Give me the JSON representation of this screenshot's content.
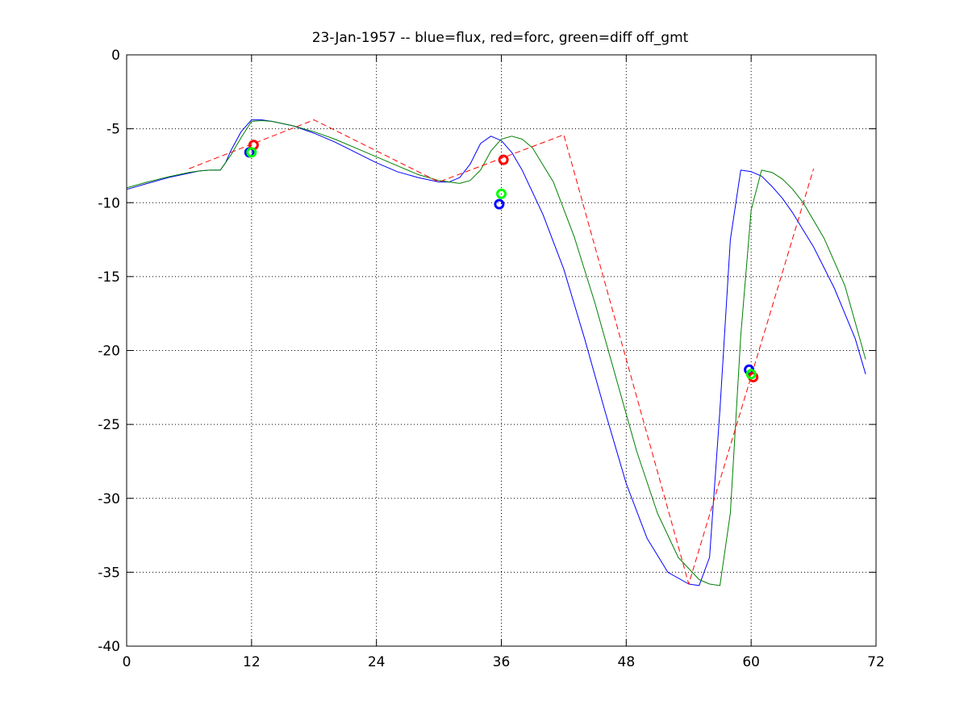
{
  "chart_data": {
    "type": "line",
    "title": "23-Jan-1957 -- blue=flux, red=forc, green=diff off_gmt",
    "xlabel": "",
    "ylabel": "",
    "xlim": [
      0,
      72
    ],
    "ylim": [
      -40,
      0
    ],
    "xticks": [
      0,
      12,
      24,
      36,
      48,
      60,
      72
    ],
    "xtick_labels": [
      "0",
      "12",
      "24",
      "36",
      "48",
      "60",
      "72"
    ],
    "yticks": [
      0,
      -5,
      -10,
      -15,
      -20,
      -25,
      -30,
      -35,
      -40
    ],
    "ytick_labels": [
      "0",
      "-5",
      "-10",
      "-15",
      "-20",
      "-25",
      "-30",
      "-35",
      "-40"
    ],
    "grid": true,
    "series": [
      {
        "color": "#0000ff",
        "style": "solid",
        "x": [
          0,
          2,
          4,
          6,
          7,
          8,
          9,
          9.5,
          10,
          11,
          12,
          13,
          14,
          16,
          18,
          20,
          22,
          24,
          26,
          28,
          30,
          31,
          32,
          33,
          34,
          35,
          36,
          37,
          38,
          40,
          42,
          44,
          46,
          48,
          50,
          52,
          54,
          55,
          56,
          57,
          58,
          59,
          60,
          61,
          62,
          63,
          64,
          66,
          68,
          70,
          71
        ],
        "y": [
          -9.1,
          -8.7,
          -8.3,
          -8.0,
          -7.85,
          -7.8,
          -7.8,
          -7.3,
          -6.5,
          -5.2,
          -4.4,
          -4.4,
          -4.5,
          -4.8,
          -5.3,
          -5.9,
          -6.6,
          -7.3,
          -7.9,
          -8.3,
          -8.6,
          -8.6,
          -8.3,
          -7.4,
          -6.0,
          -5.5,
          -5.8,
          -6.6,
          -7.8,
          -10.8,
          -14.5,
          -19.2,
          -24.2,
          -29.0,
          -32.7,
          -35.0,
          -35.8,
          -35.9,
          -34.0,
          -24.0,
          -12.5,
          -7.8,
          -7.9,
          -8.2,
          -8.9,
          -9.7,
          -10.7,
          -13.0,
          -15.8,
          -19.2,
          -21.6
        ]
      },
      {
        "color": "#008000",
        "style": "solid",
        "x": [
          0,
          2,
          4,
          6,
          7,
          8,
          9,
          10,
          11,
          12,
          13,
          14,
          16,
          18,
          20,
          22,
          24,
          26,
          28,
          30,
          31,
          32,
          33,
          34,
          35,
          36,
          37,
          38,
          39,
          41,
          43,
          45,
          47,
          49,
          51,
          53,
          55,
          56,
          57,
          58,
          59,
          60,
          61,
          62,
          63,
          64,
          65,
          67,
          69,
          71
        ],
        "y": [
          -9.0,
          -8.6,
          -8.25,
          -7.95,
          -7.85,
          -7.8,
          -7.8,
          -6.8,
          -5.6,
          -4.5,
          -4.45,
          -4.5,
          -4.8,
          -5.2,
          -5.7,
          -6.3,
          -6.9,
          -7.5,
          -8.1,
          -8.5,
          -8.6,
          -8.7,
          -8.5,
          -7.8,
          -6.5,
          -5.7,
          -5.5,
          -5.7,
          -6.3,
          -8.6,
          -12.3,
          -16.8,
          -21.8,
          -26.8,
          -31.0,
          -34.0,
          -35.5,
          -35.8,
          -35.9,
          -31.0,
          -19.0,
          -10.5,
          -7.8,
          -7.95,
          -8.4,
          -9.1,
          -10.0,
          -12.4,
          -15.6,
          -20.6
        ]
      },
      {
        "color": "#ff0000",
        "style": "dashed",
        "x": [
          6,
          18,
          30,
          42,
          54,
          66
        ],
        "y": [
          -7.7,
          -4.4,
          -8.6,
          -5.4,
          -35.8,
          -7.7
        ]
      }
    ],
    "markers": [
      {
        "color": "#0000ff",
        "x": 11.8,
        "y": -6.6
      },
      {
        "color": "#ff0000",
        "x": 12.2,
        "y": -6.1
      },
      {
        "color": "#00ff00",
        "x": 12.0,
        "y": -6.6
      },
      {
        "color": "#0000ff",
        "x": 35.8,
        "y": -10.1
      },
      {
        "color": "#ff0000",
        "x": 36.2,
        "y": -7.1
      },
      {
        "color": "#00ff00",
        "x": 36.0,
        "y": -9.4
      },
      {
        "color": "#0000ff",
        "x": 59.8,
        "y": -21.3
      },
      {
        "color": "#ff0000",
        "x": 60.2,
        "y": -21.8
      },
      {
        "color": "#00ff00",
        "x": 60.0,
        "y": -21.6
      }
    ]
  }
}
